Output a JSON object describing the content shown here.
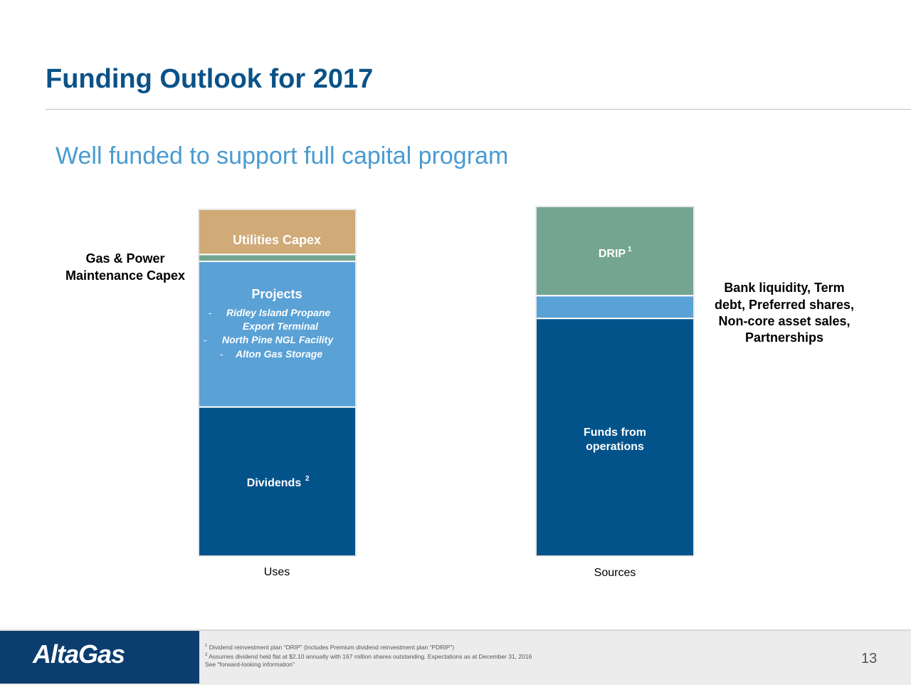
{
  "header": {
    "title": "Funding Outlook for 2017",
    "subtitle": "Well funded to support full capital program"
  },
  "chart_data": {
    "type": "stacked-bar",
    "categories": [
      "Uses",
      "Sources"
    ],
    "uses": [
      {
        "label": "Dividends",
        "sup": "2",
        "value": 43,
        "color": "#03538b"
      },
      {
        "label": "Projects",
        "value": 42,
        "color": "#5aa1d6",
        "bullets": [
          "Ridley Island Propane",
          "Export Terminal",
          "North Pine NGL Facility",
          "Alton Gas Storage"
        ]
      },
      {
        "label": "Gas & Power Maintenance Capex",
        "value": 2,
        "color": "#74a590"
      },
      {
        "label": "Utilities Capex",
        "value": 13,
        "color": "#d0aa77"
      }
    ],
    "sources": [
      {
        "label": "Funds from operations",
        "value": 68,
        "color": "#03538b"
      },
      {
        "label": "Bank liquidity, Term debt, Preferred shares, Non-core asset sales, Partnerships",
        "value": 6.5,
        "color": "#5aa1d6"
      },
      {
        "label": "DRIP",
        "sup": "1",
        "value": 25.5,
        "color": "#74a590"
      }
    ],
    "annotations": {
      "gp_line1": "Gas & Power",
      "gp_line2": "Maintenance Capex",
      "bank_line1": "Bank liquidity, Term",
      "bank_line2": "debt, Preferred shares,",
      "bank_line3": "Non-core asset sales,",
      "bank_line4": "Partnerships",
      "ffo_line1": "Funds from",
      "ffo_line2": "operations",
      "bullet_dash": "-"
    }
  },
  "footer": {
    "logo": "AltaGas",
    "note1_sup": "1",
    "note1": "Dividend reinvestment plan “DRIP” (Includes Premium  dividend reinvestment plan “PDRIP”)",
    "note2_sup": "2",
    "note2": "Assumes dividend held flat at $2.10 annually with 167 million shares outstanding. Expectations as at December 31, 2016",
    "note3": "See \"forward-looking information\"",
    "page_number": "13"
  }
}
